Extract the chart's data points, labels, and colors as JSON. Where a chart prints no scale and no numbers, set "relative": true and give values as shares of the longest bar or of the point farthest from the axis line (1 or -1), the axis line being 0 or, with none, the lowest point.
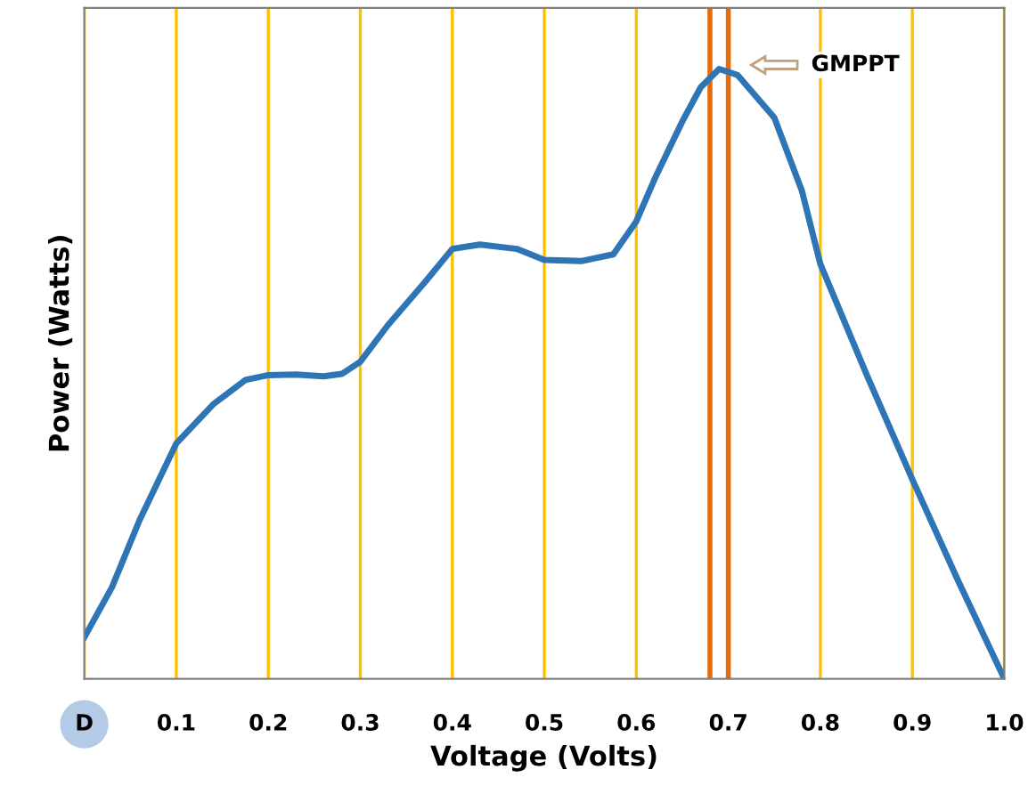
{
  "chart_data": {
    "type": "line",
    "relative": true,
    "xlabel": "Voltage (Volts)",
    "ylabel": "Power (Watts)",
    "x": [
      0,
      0.03,
      0.06,
      0.1,
      0.14,
      0.175,
      0.2,
      0.23,
      0.26,
      0.28,
      0.3,
      0.33,
      0.37,
      0.4,
      0.43,
      0.47,
      0.5,
      0.54,
      0.575,
      0.6,
      0.62,
      0.65,
      0.67,
      0.69,
      0.71,
      0.75,
      0.78,
      0.8,
      0.85,
      0.9,
      0.95,
      1.0
    ],
    "series": [
      {
        "color": "#2e75b6",
        "values": [
          0.068,
          0.15,
          0.26,
          0.386,
          0.45,
          0.49,
          0.498,
          0.499,
          0.496,
          0.5,
          0.52,
          0.58,
          0.65,
          0.705,
          0.712,
          0.705,
          0.687,
          0.685,
          0.696,
          0.75,
          0.82,
          0.914,
          0.97,
          1.0,
          0.99,
          0.92,
          0.8,
          0.68,
          0.5,
          0.327,
          0.16,
          0
        ]
      }
    ],
    "xlim": [
      0,
      1.0
    ],
    "xticks": [
      {
        "value": 0,
        "label": "D"
      },
      0.1,
      0.2,
      0.3,
      0.4,
      0.5,
      0.6,
      0.7,
      0.8,
      0.9,
      {
        "value": 1.0,
        "label": "1.0"
      }
    ],
    "grid": "x",
    "marker": "none",
    "line_style": "solid",
    "ref_lines": [
      {
        "axis": "x",
        "value": 0.68,
        "color": "#e46c0a"
      },
      {
        "axis": "x",
        "value": 0.7,
        "color": "#e46c0a"
      }
    ],
    "annotations": [
      "GMPPT"
    ]
  }
}
